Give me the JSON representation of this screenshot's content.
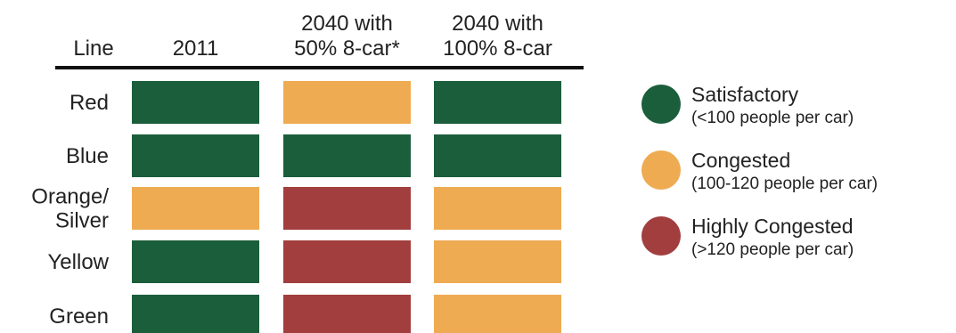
{
  "chart_data": {
    "type": "table",
    "row_header": "Line",
    "columns": [
      {
        "lines": [
          "2011"
        ]
      },
      {
        "lines": [
          "2040 with",
          "50% 8-car*"
        ]
      },
      {
        "lines": [
          "2040 with",
          "100% 8-car"
        ]
      }
    ],
    "rows": [
      {
        "lines": [
          "Red"
        ],
        "values": [
          "satisfactory",
          "congested",
          "satisfactory"
        ]
      },
      {
        "lines": [
          "Blue"
        ],
        "values": [
          "satisfactory",
          "satisfactory",
          "satisfactory"
        ]
      },
      {
        "lines": [
          "Orange/",
          "Silver"
        ],
        "values": [
          "congested",
          "highly_congested",
          "congested"
        ]
      },
      {
        "lines": [
          "Yellow"
        ],
        "values": [
          "satisfactory",
          "highly_congested",
          "congested"
        ]
      },
      {
        "lines": [
          "Green"
        ],
        "values": [
          "satisfactory",
          "highly_congested",
          "congested"
        ]
      }
    ],
    "legend": [
      {
        "key": "satisfactory",
        "label": "Satisfactory",
        "sublabel": "(<100 people per car)",
        "color": "#1b5e3b"
      },
      {
        "key": "congested",
        "label": "Congested",
        "sublabel": "(100-120 people per car)",
        "color": "#eeab52"
      },
      {
        "key": "highly_congested",
        "label": "Highly Congested",
        "sublabel": "(>120 people per car)",
        "color": "#a23e3e"
      }
    ],
    "legend_position": "right"
  }
}
